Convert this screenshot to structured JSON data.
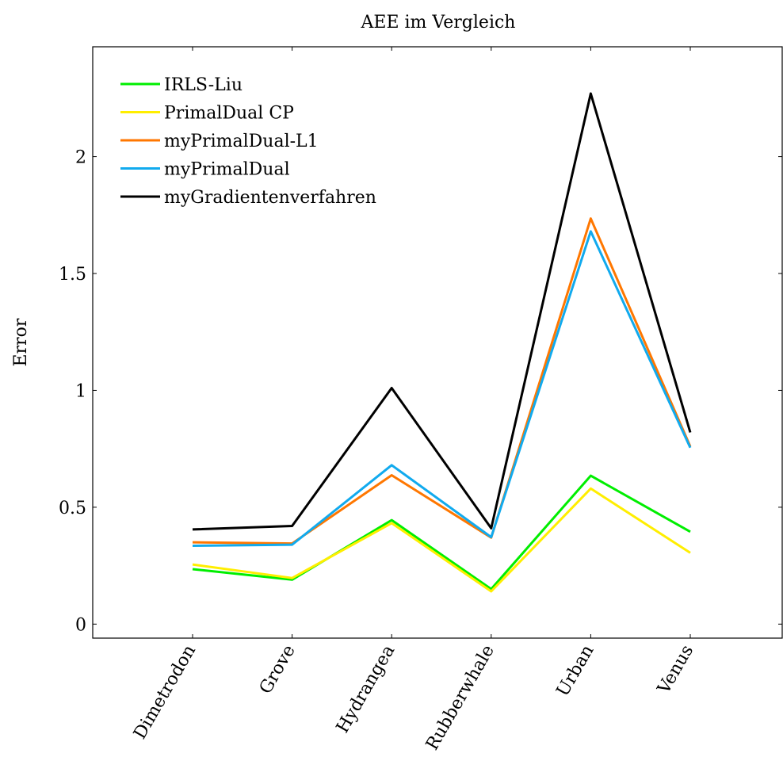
{
  "chart_data": {
    "type": "line",
    "title": "AEE im Vergleich",
    "xlabel": "",
    "ylabel": "Error",
    "categories": [
      "Dimetrodon",
      "Grove",
      "Hydrangea",
      "Rubberwhale",
      "Urban",
      "Venus"
    ],
    "yticks": [
      "0",
      "0.5",
      "1",
      "1.5",
      "2"
    ],
    "ytick_values": [
      0,
      0.5,
      1,
      1.5,
      2
    ],
    "ylim": [
      -0.06,
      2.47
    ],
    "grid": false,
    "legend_position": "top-left",
    "series": [
      {
        "name": "IRLS-Liu",
        "color": "#00ee00",
        "values": [
          0.235,
          0.19,
          0.445,
          0.15,
          0.635,
          0.395
        ]
      },
      {
        "name": "PrimalDual CP",
        "color": "#ffee00",
        "values": [
          0.255,
          0.197,
          0.432,
          0.14,
          0.58,
          0.305
        ]
      },
      {
        "name": "myPrimalDual-L1",
        "color": "#ff7700",
        "values": [
          0.35,
          0.345,
          0.637,
          0.37,
          1.735,
          0.76
        ]
      },
      {
        "name": "myPrimalDual",
        "color": "#11aaee",
        "values": [
          0.335,
          0.34,
          0.68,
          0.372,
          1.68,
          0.755
        ]
      },
      {
        "name": "myGradientenverfahren",
        "color": "#000000",
        "values": [
          0.405,
          0.42,
          1.01,
          0.41,
          2.27,
          0.82
        ]
      }
    ]
  }
}
